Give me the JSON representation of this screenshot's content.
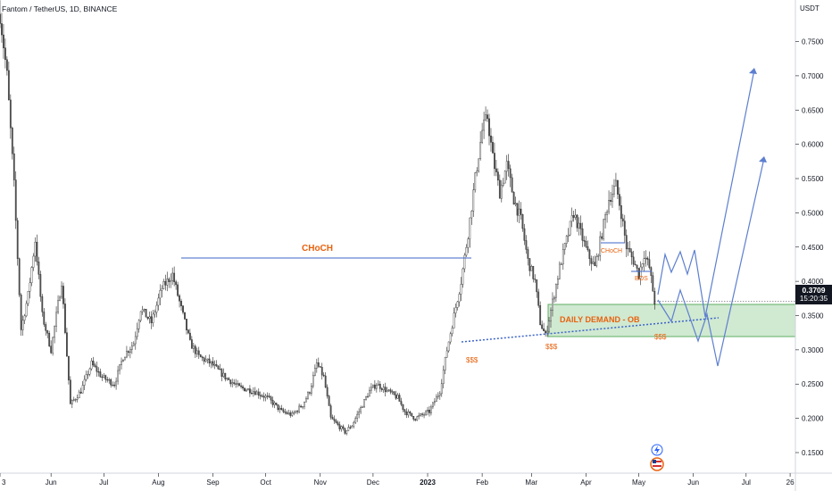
{
  "header": {
    "symbol": "Fantom / TetherUS, 1D, BINANCE"
  },
  "price_axis": {
    "unit": "USDT",
    "current_price": "0.3709",
    "countdown": "15:20:35"
  },
  "annotations": {
    "choch_main": "CHoCH",
    "choch_small": "CHoCH",
    "bos": "BOS",
    "demand_zone": "DAILY DEMAND - OB",
    "liquidity_1": "$$$",
    "liquidity_2": "$$$",
    "liquidity_3": "$$$"
  },
  "colors": {
    "up_candle": "#ffffff",
    "down_candle": "#555555",
    "candle_outline": "#2a2a2a",
    "annotation_blue": "#3c64c8",
    "annotation_orange": "#e8620e",
    "demand_fill": "#c8e6c9",
    "demand_border": "#43a047",
    "axis_text": "#131722"
  },
  "chart_data": {
    "type": "candlestick",
    "y_ticks": [
      "0.7500",
      "0.7000",
      "0.6500",
      "0.6000",
      "0.5500",
      "0.5000",
      "0.4500",
      "0.4000",
      "0.3500",
      "0.3000",
      "0.2500",
      "0.2000",
      "0.1500"
    ],
    "y_range": [
      0.12,
      0.795
    ],
    "x_ticks": [
      "3",
      "Jun",
      "Jul",
      "Aug",
      "Sep",
      "Oct",
      "Nov",
      "Dec",
      "2023",
      "Feb",
      "Mar",
      "Apr",
      "May",
      "Jun",
      "Jul",
      "26"
    ],
    "x_tick_days": [
      0,
      29,
      59,
      90,
      121,
      151,
      182,
      212,
      243,
      274,
      302,
      333,
      363,
      394,
      424,
      449
    ],
    "x_range_days": [
      0,
      452
    ],
    "series_path": [
      [
        0,
        0.79
      ],
      [
        4,
        0.7
      ],
      [
        8,
        0.54
      ],
      [
        12,
        0.33
      ],
      [
        16,
        0.38
      ],
      [
        20,
        0.46
      ],
      [
        24,
        0.35
      ],
      [
        29,
        0.3
      ],
      [
        35,
        0.4
      ],
      [
        40,
        0.22
      ],
      [
        46,
        0.24
      ],
      [
        52,
        0.28
      ],
      [
        58,
        0.26
      ],
      [
        65,
        0.25
      ],
      [
        70,
        0.29
      ],
      [
        76,
        0.31
      ],
      [
        80,
        0.36
      ],
      [
        86,
        0.34
      ],
      [
        92,
        0.39
      ],
      [
        98,
        0.41
      ],
      [
        103,
        0.36
      ],
      [
        108,
        0.31
      ],
      [
        113,
        0.29
      ],
      [
        120,
        0.28
      ],
      [
        128,
        0.26
      ],
      [
        136,
        0.245
      ],
      [
        144,
        0.24
      ],
      [
        152,
        0.23
      ],
      [
        160,
        0.21
      ],
      [
        166,
        0.205
      ],
      [
        172,
        0.22
      ],
      [
        176,
        0.24
      ],
      [
        180,
        0.28
      ],
      [
        184,
        0.26
      ],
      [
        188,
        0.2
      ],
      [
        192,
        0.19
      ],
      [
        196,
        0.18
      ],
      [
        200,
        0.19
      ],
      [
        206,
        0.22
      ],
      [
        210,
        0.24
      ],
      [
        214,
        0.25
      ],
      [
        220,
        0.24
      ],
      [
        226,
        0.23
      ],
      [
        230,
        0.21
      ],
      [
        236,
        0.2
      ],
      [
        244,
        0.21
      ],
      [
        250,
        0.24
      ],
      [
        254,
        0.3
      ],
      [
        258,
        0.35
      ],
      [
        262,
        0.4
      ],
      [
        266,
        0.47
      ],
      [
        270,
        0.55
      ],
      [
        274,
        0.62
      ],
      [
        277,
        0.64
      ],
      [
        280,
        0.58
      ],
      [
        284,
        0.53
      ],
      [
        288,
        0.57
      ],
      [
        292,
        0.52
      ],
      [
        296,
        0.49
      ],
      [
        300,
        0.43
      ],
      [
        304,
        0.4
      ],
      [
        307,
        0.34
      ],
      [
        310,
        0.32
      ],
      [
        314,
        0.37
      ],
      [
        318,
        0.42
      ],
      [
        322,
        0.46
      ],
      [
        326,
        0.5
      ],
      [
        330,
        0.47
      ],
      [
        334,
        0.44
      ],
      [
        338,
        0.42
      ],
      [
        342,
        0.47
      ],
      [
        346,
        0.52
      ],
      [
        350,
        0.54
      ],
      [
        353,
        0.5
      ],
      [
        356,
        0.45
      ],
      [
        360,
        0.43
      ],
      [
        363,
        0.41
      ],
      [
        366,
        0.44
      ],
      [
        369,
        0.42
      ],
      [
        372,
        0.37
      ]
    ]
  }
}
